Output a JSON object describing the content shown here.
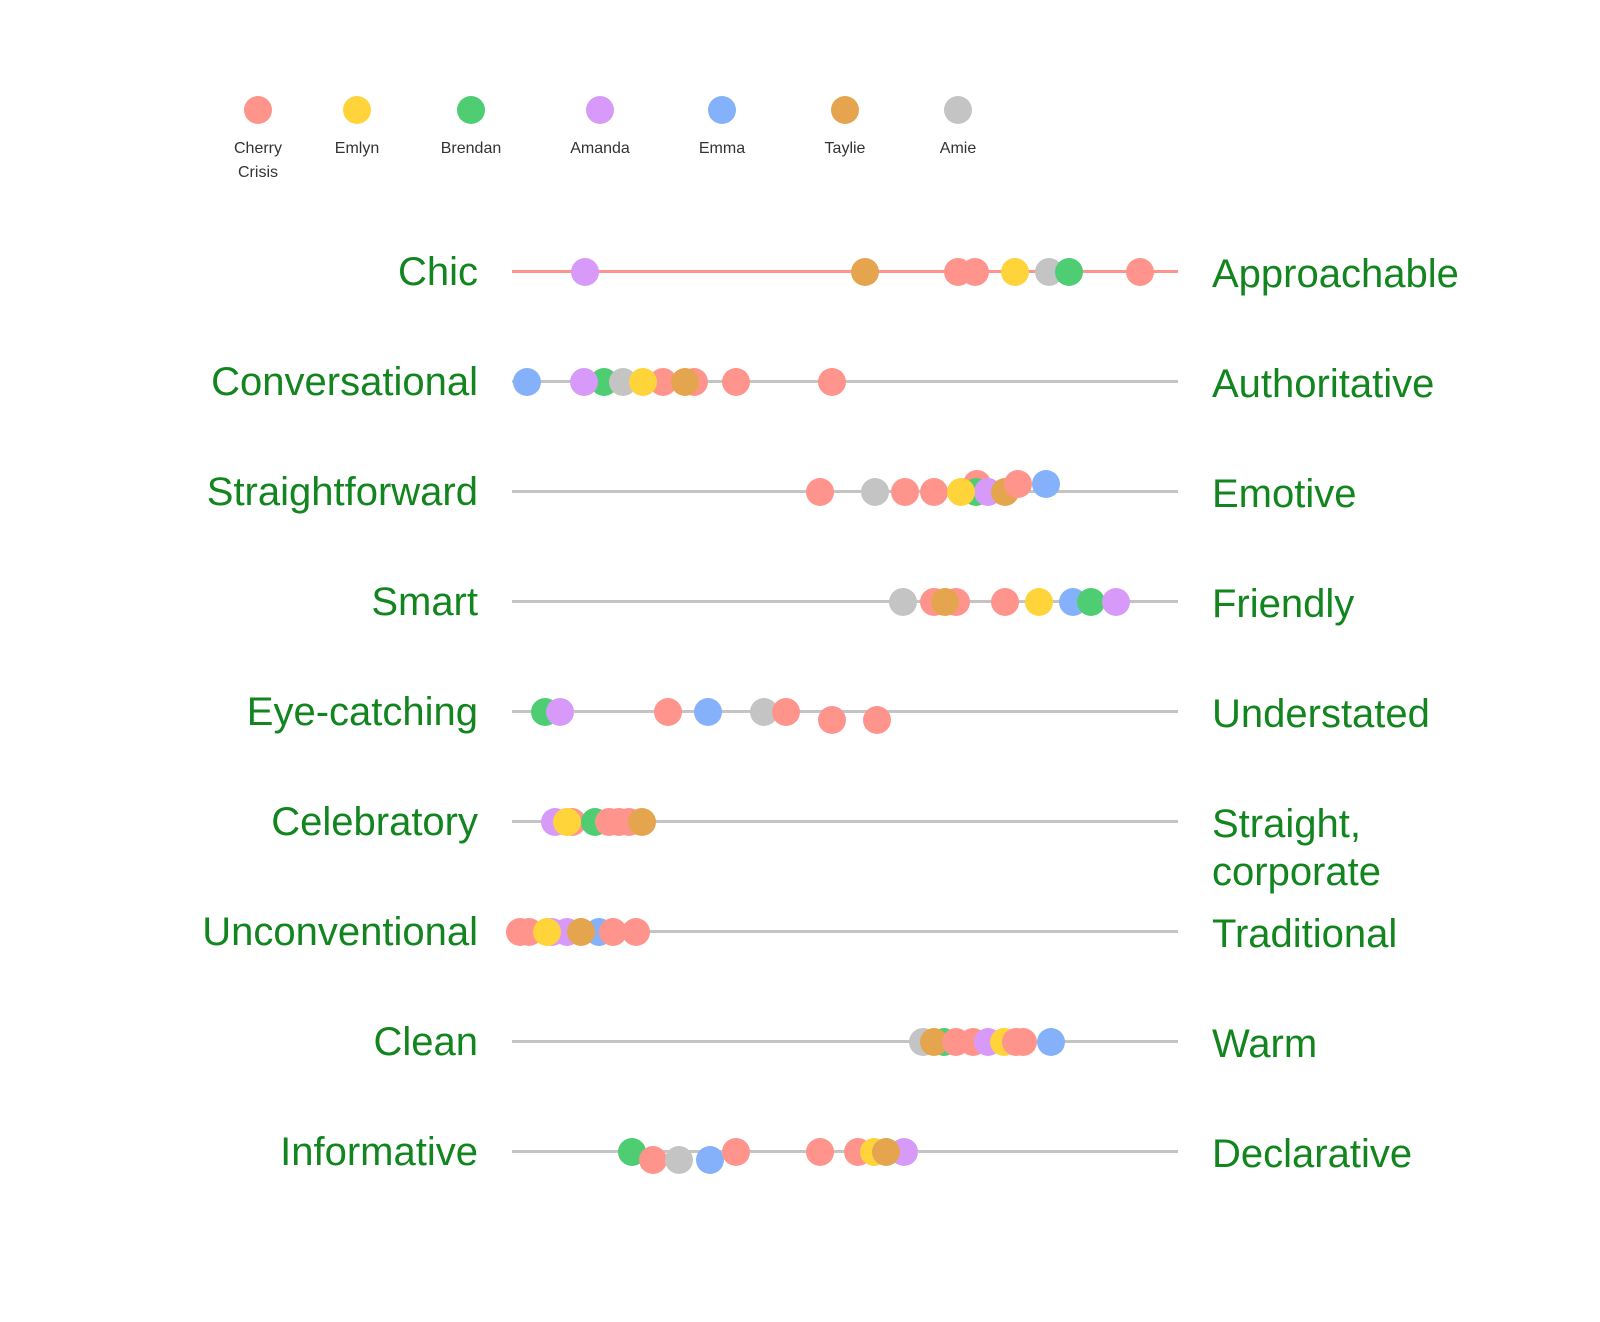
{
  "legend": [
    {
      "name": "Cherry\nCrisis",
      "color": "#ff948c"
    },
    {
      "name": "Emlyn",
      "color": "#ffd33a"
    },
    {
      "name": "Brendan",
      "color": "#4fcd72"
    },
    {
      "name": "Amanda",
      "color": "#d89af8"
    },
    {
      "name": "Emma",
      "color": "#84b1fa"
    },
    {
      "name": "Taylie",
      "color": "#e4a54e"
    },
    {
      "name": "Amie",
      "color": "#c4c4c4"
    }
  ],
  "scales": [
    {
      "left": "Chic",
      "right": "Approachable",
      "highlight_color": "#ff948c",
      "dots": [
        {
          "v": 0.11,
          "c": 3
        },
        {
          "v": 0.53,
          "c": 5
        },
        {
          "v": 0.67,
          "c": 0
        },
        {
          "v": 0.695,
          "c": 0
        },
        {
          "v": 0.755,
          "c": 1
        },
        {
          "v": 0.807,
          "c": 6
        },
        {
          "v": 0.837,
          "c": 2
        },
        {
          "v": 0.943,
          "c": 0
        }
      ]
    },
    {
      "left": "Conversational",
      "right": "Authoritative",
      "dots": [
        {
          "v": 0.022,
          "c": 4
        },
        {
          "v": 0.138,
          "c": 2
        },
        {
          "v": 0.108,
          "c": 3
        },
        {
          "v": 0.167,
          "c": 6
        },
        {
          "v": 0.226,
          "c": 0
        },
        {
          "v": 0.197,
          "c": 1
        },
        {
          "v": 0.274,
          "c": 0
        },
        {
          "v": 0.26,
          "c": 5
        },
        {
          "v": 0.337,
          "c": 0
        },
        {
          "v": 0.48,
          "c": 0
        }
      ]
    },
    {
      "left": "Straightforward",
      "right": "Emotive",
      "dots": [
        {
          "v": 0.462,
          "c": 0
        },
        {
          "v": 0.545,
          "c": 6
        },
        {
          "v": 0.59,
          "c": 0
        },
        {
          "v": 0.633,
          "c": 0
        },
        {
          "v": 0.698,
          "c": 0,
          "dy": -8
        },
        {
          "v": 0.697,
          "c": 2
        },
        {
          "v": 0.715,
          "c": 3
        },
        {
          "v": 0.674,
          "c": 1
        },
        {
          "v": 0.74,
          "c": 5
        },
        {
          "v": 0.802,
          "c": 4,
          "dy": -8
        },
        {
          "v": 0.76,
          "c": 0,
          "dy": -8
        }
      ]
    },
    {
      "left": "Smart",
      "right": "Friendly",
      "dots": [
        {
          "v": 0.587,
          "c": 6
        },
        {
          "v": 0.633,
          "c": 0
        },
        {
          "v": 0.667,
          "c": 0
        },
        {
          "v": 0.65,
          "c": 5
        },
        {
          "v": 0.74,
          "c": 0
        },
        {
          "v": 0.792,
          "c": 1
        },
        {
          "v": 0.843,
          "c": 4
        },
        {
          "v": 0.87,
          "c": 2
        },
        {
          "v": 0.907,
          "c": 3
        }
      ]
    },
    {
      "left": "Eye-catching",
      "right": "Understated",
      "dots": [
        {
          "v": 0.05,
          "c": 2
        },
        {
          "v": 0.072,
          "c": 3
        },
        {
          "v": 0.234,
          "c": 0
        },
        {
          "v": 0.294,
          "c": 4
        },
        {
          "v": 0.378,
          "c": 6
        },
        {
          "v": 0.411,
          "c": 0
        },
        {
          "v": 0.481,
          "c": 0,
          "dy": 8
        },
        {
          "v": 0.548,
          "c": 0,
          "dy": 8
        }
      ]
    },
    {
      "left": "Celebratory",
      "right": "Straight,\ncorporate",
      "dots": [
        {
          "v": 0.065,
          "c": 3
        },
        {
          "v": 0.09,
          "c": 0
        },
        {
          "v": 0.125,
          "c": 2
        },
        {
          "v": 0.145,
          "c": 0
        },
        {
          "v": 0.16,
          "c": 0
        },
        {
          "v": 0.175,
          "c": 0
        },
        {
          "v": 0.082,
          "c": 1
        },
        {
          "v": 0.195,
          "c": 5
        }
      ]
    },
    {
      "left": "Unconventional",
      "right": "Traditional",
      "dots": [
        {
          "v": 0.06,
          "c": 3
        },
        {
          "v": 0.083,
          "c": 3
        },
        {
          "v": 0.13,
          "c": 4
        },
        {
          "v": 0.012,
          "c": 0
        },
        {
          "v": 0.025,
          "c": 0
        },
        {
          "v": 0.052,
          "c": 1
        },
        {
          "v": 0.104,
          "c": 5
        },
        {
          "v": 0.152,
          "c": 0
        },
        {
          "v": 0.186,
          "c": 0
        }
      ]
    },
    {
      "left": "Clean",
      "right": "Warm",
      "dots": [
        {
          "v": 0.617,
          "c": 6
        },
        {
          "v": 0.648,
          "c": 2
        },
        {
          "v": 0.633,
          "c": 5
        },
        {
          "v": 0.667,
          "c": 0
        },
        {
          "v": 0.692,
          "c": 0
        },
        {
          "v": 0.715,
          "c": 3
        },
        {
          "v": 0.738,
          "c": 1
        },
        {
          "v": 0.757,
          "c": 0
        },
        {
          "v": 0.767,
          "c": 0
        },
        {
          "v": 0.81,
          "c": 4
        }
      ]
    },
    {
      "left": "Informative",
      "right": "Declarative",
      "dots": [
        {
          "v": 0.18,
          "c": 2
        },
        {
          "v": 0.211,
          "c": 0,
          "dy": 8
        },
        {
          "v": 0.25,
          "c": 6,
          "dy": 8
        },
        {
          "v": 0.297,
          "c": 4,
          "dy": 8
        },
        {
          "v": 0.337,
          "c": 0
        },
        {
          "v": 0.462,
          "c": 0
        },
        {
          "v": 0.519,
          "c": 0
        },
        {
          "v": 0.588,
          "c": 3
        },
        {
          "v": 0.543,
          "c": 1
        },
        {
          "v": 0.561,
          "c": 5
        }
      ]
    }
  ]
}
